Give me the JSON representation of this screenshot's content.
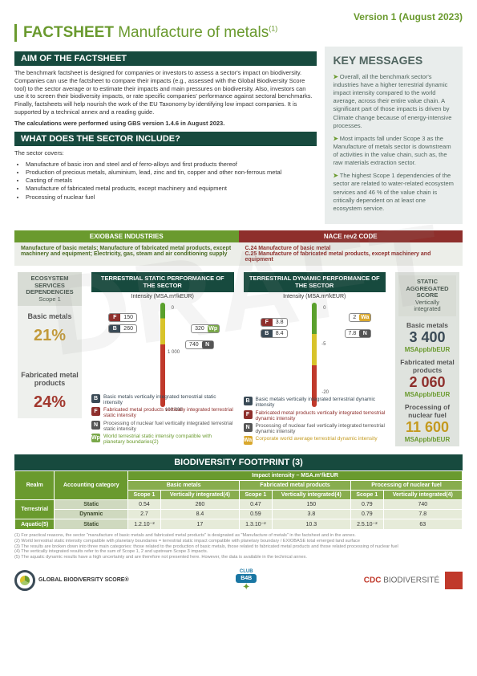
{
  "version": "Version 1 (August 2023)",
  "title_prefix": "FACTSHEET ",
  "title_main": "Manufacture of metals",
  "title_note": "(1)",
  "aim_head": "AIM OF THE  FACTSHEET",
  "aim_body": "The benchmark factsheet is designed for companies or investors to assess a sector's impact on biodiversity. Companies can use the factsheet to compare their impacts (e.g., assessed with the Global Biodiversity Score tool) to the sector average or to estimate their impacts and main pressures on biodiversity. Also, investors can use it to screen their biodiversity impacts, or rate specific companies' performance against sectoral benchmarks. Finally, factsheets will help nourish the work of the EU Taxonomy by identifying low impact companies. It is supported by a technical annex and a reading guide.",
  "aim_calc": "The calculations were performed using GBS version 1.4.6 in August 2023.",
  "sector_head": "WHAT DOES THE SECTOR INCLUDE?",
  "sector_intro": "The sector covers:",
  "sector_items": [
    "Manufacture of basic iron and steel and of ferro-alloys and first products thereof",
    "Production of precious metals, aluminium, lead, zinc and tin, copper and other non-ferrous metal",
    "Casting of metals",
    "Manufacture of fabricated metal products, except machinery and equipment",
    "Processing of nuclear fuel"
  ],
  "key_title": "KEY MESSAGES",
  "key_items": [
    "Overall, all the benchmark sector's industries have a higher terrestrial dynamic impact intensity compared to the world average, across their entire value chain. A significant part of those impacts is driven by Climate change because of energy-intensive processes.",
    "Most impacts fall under Scope 3 as the Manufacture of metals sector is downstream of activities in the value chain, such as, the raw materials extraction sector.",
    "The highest Scope 1 dependencies of the sector are related to water-related ecosystem services and 46 % of the value chain is critically dependent on at least one ecosystem service."
  ],
  "tab_exiobase": "EXIOBASE INDUSTRIES",
  "tab_nace": "NACE rev2 CODE",
  "exiobase_text": "Manufacture of basic metals; Manufacture of fabricated metal products, except machinery and equipment; Electricity, gas, steam and air conditioning supply",
  "nace_l1": "C.24 Manufacture of basic metal",
  "nace_l2": "C.25 Manufacture of fabricated metal products, except machinery and equipment",
  "eco_head": "ECOSYSTEM SERVICES DEPENDENCIES",
  "eco_scope": "Scope 1",
  "eco_bm_label": "Basic metals",
  "eco_bm_val": "21%",
  "eco_fp_label": "Fabricated metal products",
  "eco_fp_val": "24%",
  "static_head": "TERRESTRIAL STATIC PERFORMANCE OF THE SECTOR",
  "dynamic_head": "TERRESTRIAL DYNAMIC PERFORMANCE OF THE SECTOR",
  "intensity1": "Intensity (MSA.m²/kEUR)",
  "intensity2": "Intensity (MSA.m²/kEUR)",
  "gauge1": {
    "ticks": [
      "0",
      "1 000",
      "100 000"
    ],
    "F": "150",
    "B": "260",
    "Wp": "320",
    "N": "740"
  },
  "gauge2": {
    "ticks": [
      "0",
      "-5",
      "-20"
    ],
    "F": "3.8",
    "B": "8.4",
    "Wa": "2",
    "N": "7.8"
  },
  "legend_static": [
    {
      "tag": "B",
      "cls": "b",
      "txt": "Basic metals vertically integrated terrestrial static intensity"
    },
    {
      "tag": "F",
      "cls": "",
      "txt": "Fabricated metal products vertically integrated terrestrial static intensity"
    },
    {
      "tag": "N",
      "cls": "n",
      "txt": "Processing of nuclear fuel vertically integrated terrestrial static intensity"
    },
    {
      "tag": "Wp",
      "cls": "g",
      "txt": "World terrestrial static intensity compatible with planetary boundaries(2)"
    }
  ],
  "legend_dynamic": [
    {
      "tag": "B",
      "cls": "b",
      "txt": "Basic metals vertically integrated terrestrial dynamic intensity"
    },
    {
      "tag": "F",
      "cls": "",
      "txt": "Fabricated metal products vertically integrated terrestrial dynamic intensity"
    },
    {
      "tag": "N",
      "cls": "n",
      "txt": "Processing of nuclear fuel vertically integrated terrestrial dynamic intensity"
    },
    {
      "tag": "Wa",
      "cls": "y",
      "txt": "Corporate world average terrestrial dynamic intensity"
    }
  ],
  "agg_head": "STATIC AGGREGATED SCORE",
  "agg_sub": "Vertically integrated",
  "agg": [
    {
      "label": "Basic metals",
      "val": "3 400",
      "unit": "MSAppb/bEUR",
      "color": "#3a4a56"
    },
    {
      "label": "Fabricated metal products",
      "val": "2 060",
      "unit": "MSAppb/bEUR",
      "color": "#8e2f2c"
    },
    {
      "label": "Processing of nuclear fuel",
      "val": "11 600",
      "unit": "MSAppb/bEUR",
      "color": "#c49a1f"
    }
  ],
  "footprint_head": "BIODIVERSITY FOOTPRINT (3)",
  "table": {
    "top_span": "Impact intensity – MSA.m²/kEUR",
    "realm_h": "Realm",
    "acct_h": "Accounting category",
    "cols": [
      "Basic metals",
      "Fabricated metal products",
      "Processing of nuclear fuel"
    ],
    "sub": [
      "Scope 1",
      "Vertically integrated(4)"
    ],
    "rows": [
      {
        "realm": "Terrestrial",
        "cat": "Static",
        "v": [
          "0.54",
          "260",
          "0.47",
          "150",
          "0.79",
          "740"
        ]
      },
      {
        "realm": "",
        "cat": "Dynamic",
        "v": [
          "2.7",
          "8.4",
          "0.59",
          "3.8",
          "0.79",
          "7.8"
        ]
      },
      {
        "realm": "Aquatic(5)",
        "cat": "Static",
        "v": [
          "1.2.10⁻²",
          "17",
          "1.3.10⁻²",
          "10.3",
          "2.5.10⁻²",
          "63"
        ]
      }
    ]
  },
  "footnotes": [
    "(1) For practical reasons, the sector \"manufacture of basic metals and fabricated metal products\" is designated as \"Manufacture of metals\" in the factsheet and in the annex.",
    "(2) World terrestrial static intensity compatible with planetary boundaries = terrestrial static impact compatible with planetary boundary / EXIOBASE total emerged land surface",
    "(3) The results are broken down into three main categories: those related to the production of basic metals, those related to fabricated metal products and those related processing of nuclear fuel",
    "(4) The vertically integrated results refer to the sum of Scope 1, 2 and upstream Scope 3 impacts.",
    "(5) The aquatic dynamic results have a high uncertainty and are therefore not presented here. However, the data is available in the technical annex."
  ],
  "logo_gbs": "GLOBAL BIODIVERSITY SCORE®",
  "logo_b4b_top": "CLUB",
  "logo_b4b": "B4B",
  "logo_cdc": "CDC",
  "logo_cdc2": "BIODIVERSITÉ"
}
